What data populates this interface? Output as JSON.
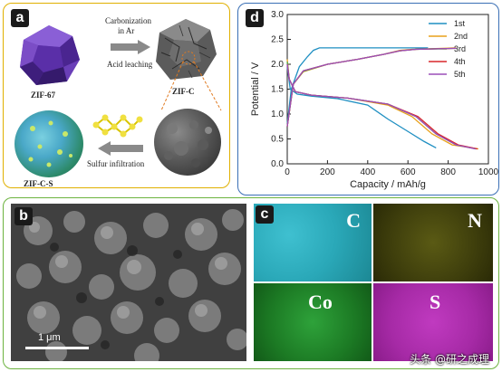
{
  "panel_a": {
    "tag": "a",
    "step1_line1": "Carbonization",
    "step1_line2": "in Ar",
    "step1_line3": "Acid leaching",
    "zif67": "ZIF-67",
    "zifc": "ZIF-C",
    "zifcs": "ZIF-C-S",
    "step2": "Sulfur infiltration"
  },
  "panel_b": {
    "tag": "b",
    "scale": "1 μm"
  },
  "panel_c": {
    "tag": "c",
    "maps": [
      "C",
      "N",
      "Co",
      "S"
    ]
  },
  "panel_d": {
    "tag": "d"
  },
  "watermark": "头条 @研之成理",
  "chart_data": {
    "type": "line",
    "xlabel": "Capacity / mAh/g",
    "ylabel": "Potential / V",
    "xlim": [
      0,
      1000
    ],
    "ylim": [
      0,
      3.0
    ],
    "xticks": [
      "0",
      "200",
      "400",
      "600",
      "800",
      "1000"
    ],
    "yticks": [
      "0.0",
      "0.5",
      "1.0",
      "1.5",
      "2.0",
      "2.5",
      "3.0"
    ],
    "legend_position": "top-right",
    "colors": [
      "#1f8fc2",
      "#e8a01a",
      "#4aa84a",
      "#d8262a",
      "#9b4fb8"
    ],
    "series": [
      {
        "name": "1st",
        "discharge": [
          [
            0,
            1.95
          ],
          [
            15,
            1.5
          ],
          [
            50,
            1.4
          ],
          [
            120,
            1.36
          ],
          [
            250,
            1.31
          ],
          [
            400,
            1.18
          ],
          [
            500,
            0.9
          ],
          [
            600,
            0.65
          ],
          [
            680,
            0.45
          ],
          [
            740,
            0.32
          ]
        ],
        "charge": [
          [
            0,
            0.8
          ],
          [
            20,
            1.5
          ],
          [
            60,
            1.95
          ],
          [
            100,
            2.15
          ],
          [
            130,
            2.28
          ],
          [
            160,
            2.33
          ],
          [
            300,
            2.33
          ],
          [
            500,
            2.33
          ],
          [
            700,
            2.33
          ]
        ]
      },
      {
        "name": "2nd",
        "discharge": [
          [
            0,
            2.1
          ],
          [
            10,
            1.7
          ],
          [
            40,
            1.45
          ],
          [
            120,
            1.38
          ],
          [
            300,
            1.32
          ],
          [
            500,
            1.18
          ],
          [
            620,
            0.95
          ],
          [
            720,
            0.6
          ],
          [
            820,
            0.38
          ],
          [
            950,
            0.3
          ]
        ],
        "charge": [
          [
            0,
            0.75
          ],
          [
            30,
            1.6
          ],
          [
            80,
            1.85
          ],
          [
            200,
            2.0
          ],
          [
            350,
            2.1
          ],
          [
            480,
            2.2
          ],
          [
            560,
            2.28
          ],
          [
            620,
            2.3
          ],
          [
            840,
            2.33
          ]
        ]
      },
      {
        "name": "3rd",
        "discharge": [
          [
            0,
            2.05
          ],
          [
            10,
            1.7
          ],
          [
            40,
            1.45
          ],
          [
            120,
            1.38
          ],
          [
            300,
            1.32
          ],
          [
            500,
            1.2
          ],
          [
            640,
            0.95
          ],
          [
            740,
            0.6
          ],
          [
            840,
            0.38
          ],
          [
            940,
            0.3
          ]
        ],
        "charge": [
          [
            0,
            0.75
          ],
          [
            30,
            1.6
          ],
          [
            80,
            1.86
          ],
          [
            200,
            2.0
          ],
          [
            350,
            2.1
          ],
          [
            480,
            2.2
          ],
          [
            560,
            2.27
          ],
          [
            640,
            2.3
          ],
          [
            840,
            2.32
          ]
        ]
      },
      {
        "name": "4th",
        "discharge": [
          [
            0,
            2.0
          ],
          [
            10,
            1.7
          ],
          [
            40,
            1.45
          ],
          [
            120,
            1.38
          ],
          [
            300,
            1.32
          ],
          [
            500,
            1.2
          ],
          [
            650,
            0.95
          ],
          [
            750,
            0.6
          ],
          [
            850,
            0.38
          ],
          [
            945,
            0.3
          ]
        ],
        "charge": [
          [
            0,
            0.75
          ],
          [
            30,
            1.6
          ],
          [
            80,
            1.87
          ],
          [
            200,
            2.0
          ],
          [
            350,
            2.1
          ],
          [
            480,
            2.2
          ],
          [
            560,
            2.27
          ],
          [
            640,
            2.3
          ],
          [
            840,
            2.32
          ]
        ]
      },
      {
        "name": "5th",
        "discharge": [
          [
            0,
            2.0
          ],
          [
            10,
            1.7
          ],
          [
            40,
            1.45
          ],
          [
            120,
            1.38
          ],
          [
            300,
            1.32
          ],
          [
            500,
            1.2
          ],
          [
            640,
            0.95
          ],
          [
            740,
            0.6
          ],
          [
            840,
            0.38
          ],
          [
            935,
            0.3
          ]
        ],
        "charge": [
          [
            0,
            0.75
          ],
          [
            30,
            1.6
          ],
          [
            80,
            1.87
          ],
          [
            200,
            2.0
          ],
          [
            350,
            2.1
          ],
          [
            480,
            2.2
          ],
          [
            560,
            2.27
          ],
          [
            640,
            2.3
          ],
          [
            840,
            2.32
          ]
        ]
      }
    ]
  }
}
